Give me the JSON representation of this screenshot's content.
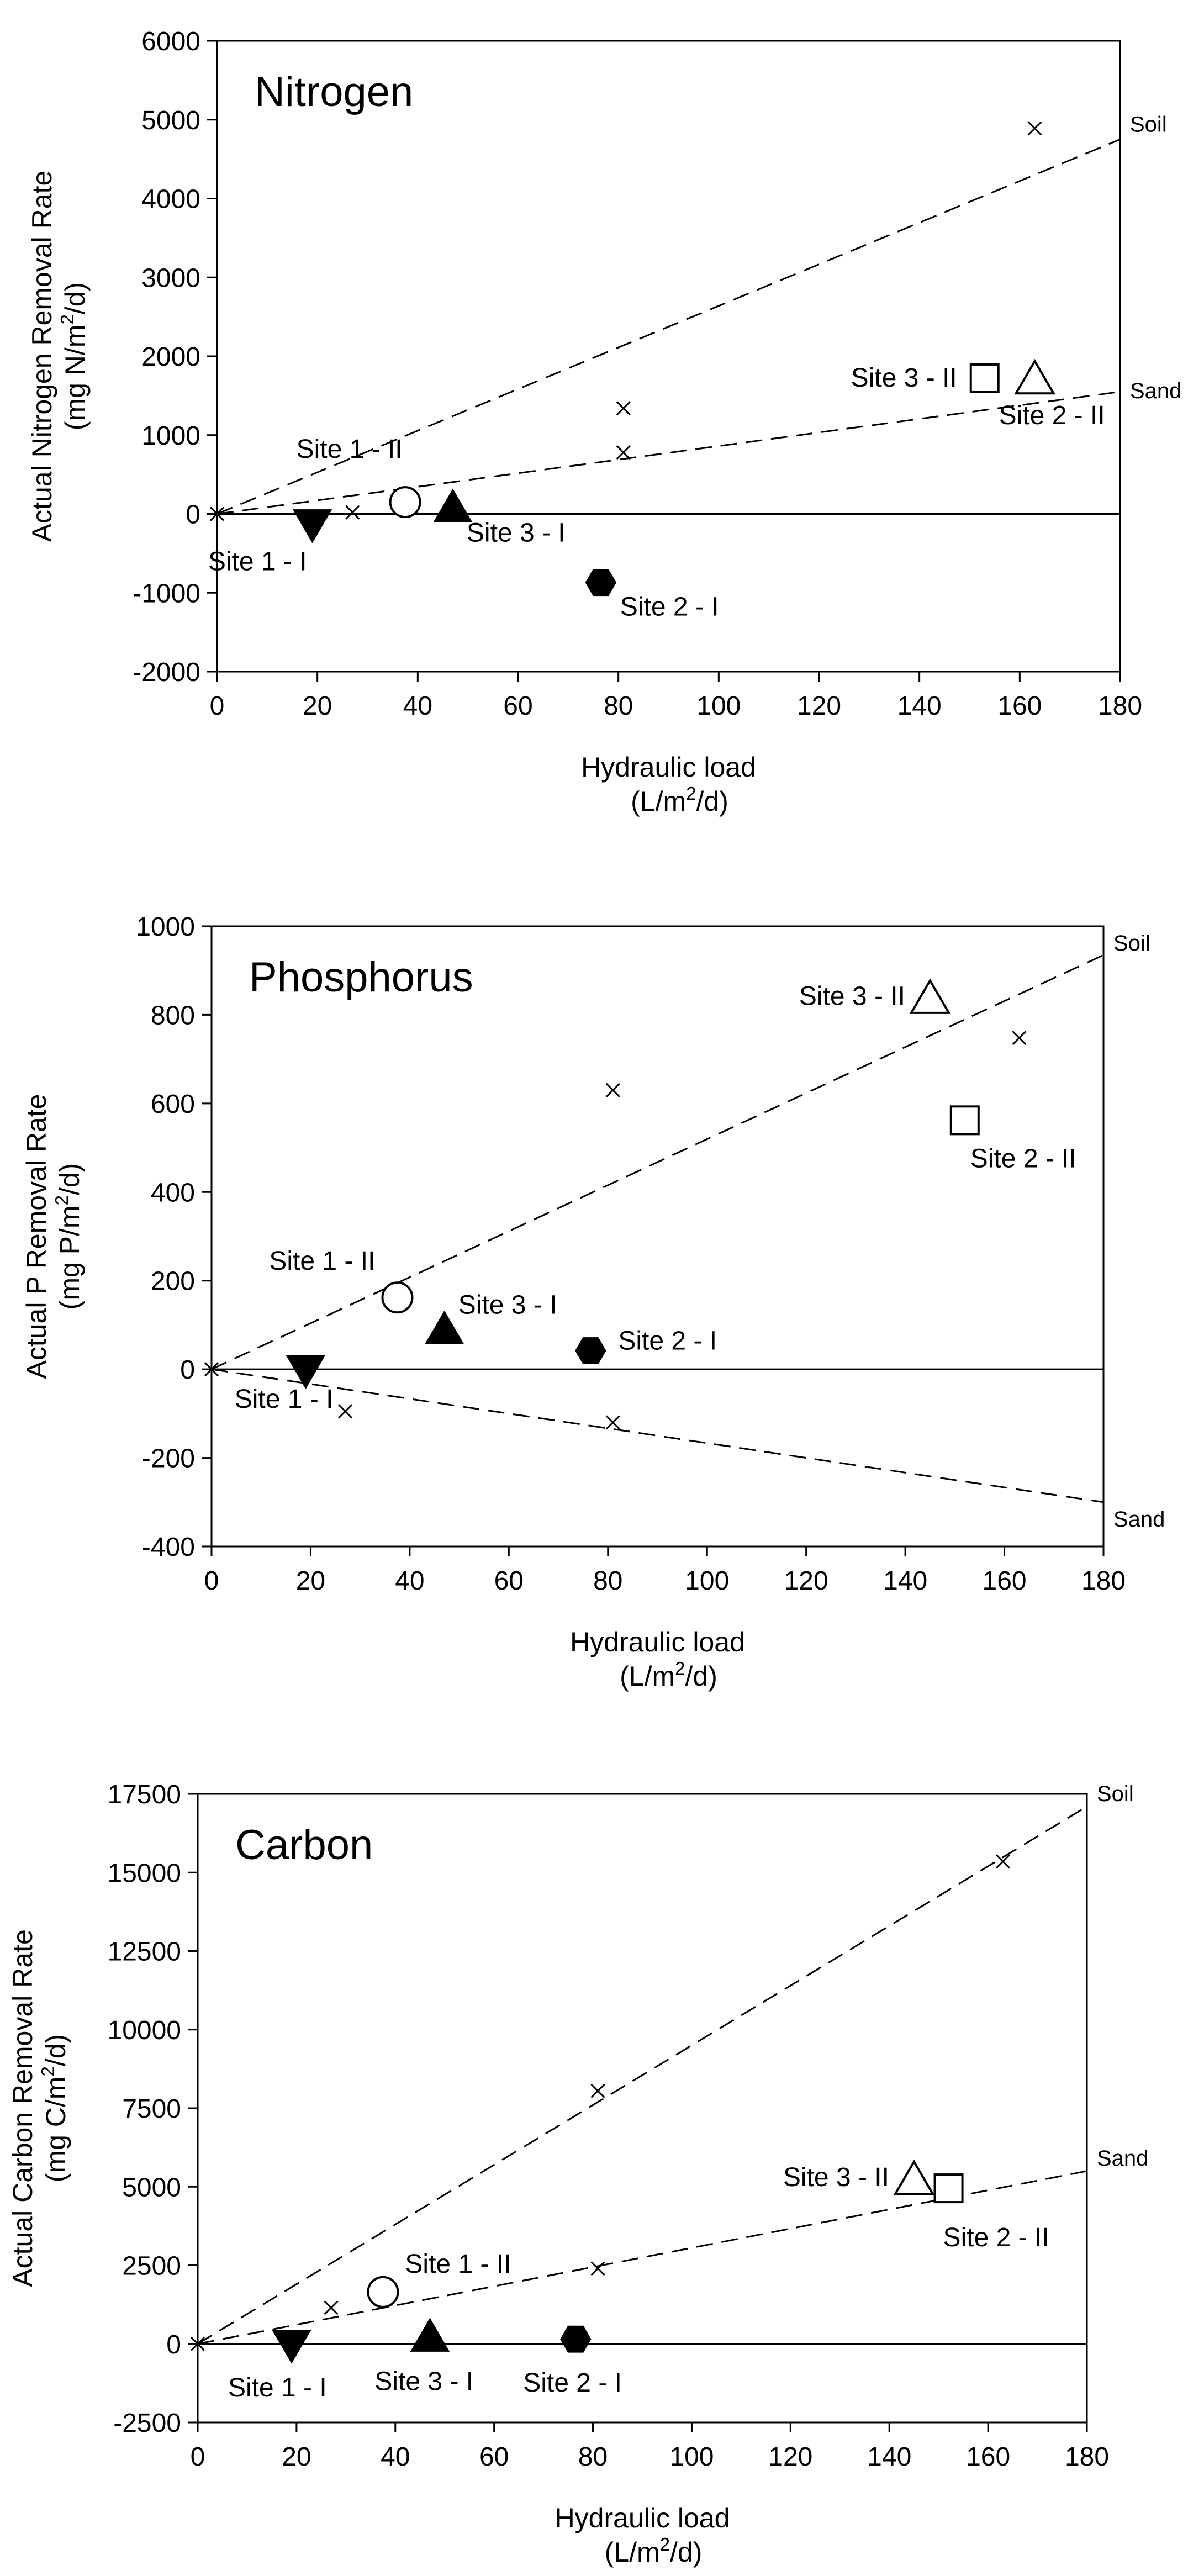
{
  "figure": {
    "hydraulic_label": "Hydraulic load",
    "unit_label": "(L/m²/d)",
    "panels": [
      "Nitrogen",
      "Phosphorus",
      "Carbon"
    ]
  },
  "chart_data": [
    {
      "type": "scatter",
      "title": "Nitrogen",
      "xlabel": "Hydraulic load",
      "xlabel_unit": "(L/m²/d)",
      "ylabel": "Actual Nitrogen Removal Rate",
      "ylabel_unit": "(mg N/m²/d)",
      "xlim": [
        0,
        180
      ],
      "ylim": [
        -2000,
        6000
      ],
      "xticks": [
        "0",
        "20",
        "40",
        "60",
        "80",
        "100",
        "120",
        "140",
        "160",
        "180"
      ],
      "yticks": [
        "-2000",
        "-1000",
        "0",
        "1000",
        "2000",
        "3000",
        "4000",
        "5000",
        "6000"
      ],
      "lines": [
        {
          "name": "Soil",
          "x": [
            0,
            180
          ],
          "y": [
            0,
            4750
          ]
        },
        {
          "name": "Sand",
          "x": [
            0,
            180
          ],
          "y": [
            0,
            1550
          ]
        }
      ],
      "x_points": [
        {
          "x": 0,
          "y": 0
        },
        {
          "x": 27,
          "y": 20
        },
        {
          "x": 37.5,
          "y": 190
        },
        {
          "x": 81,
          "y": 1340
        },
        {
          "x": 81,
          "y": 780
        },
        {
          "x": 163,
          "y": 4890
        }
      ],
      "sites": [
        {
          "label": "Site 1 - I",
          "marker": "down-triangle",
          "x": 19,
          "y": -120
        },
        {
          "label": "Site 1 - II",
          "marker": "circle",
          "x": 37.5,
          "y": 150
        },
        {
          "label": "Site 3 - I",
          "marker": "triangle",
          "x": 47,
          "y": 70
        },
        {
          "label": "Site 2 - I",
          "marker": "hexagon",
          "x": 76.5,
          "y": -870
        },
        {
          "label": "Site 3 - II",
          "marker": "square",
          "x": 153,
          "y": 1720
        },
        {
          "label": "Site 2 - II",
          "marker": "open-triangle",
          "x": 163,
          "y": 1700
        }
      ]
    },
    {
      "type": "scatter",
      "title": "Phosphorus",
      "xlabel": "Hydraulic load",
      "xlabel_unit": "(L/m²/d)",
      "ylabel": "Actual P Removal Rate",
      "ylabel_unit": "(mg P/m²/d)",
      "xlim": [
        0,
        180
      ],
      "ylim": [
        -400,
        1000
      ],
      "xticks": [
        "0",
        "20",
        "40",
        "60",
        "80",
        "100",
        "120",
        "140",
        "160",
        "180"
      ],
      "yticks": [
        "-400",
        "-200",
        "0",
        "200",
        "400",
        "600",
        "800",
        "1000"
      ],
      "lines": [
        {
          "name": "Soil",
          "x": [
            0,
            180
          ],
          "y": [
            0,
            935
          ]
        },
        {
          "name": "Sand",
          "x": [
            0,
            180
          ],
          "y": [
            0,
            -300
          ]
        }
      ],
      "x_points": [
        {
          "x": 0,
          "y": 0
        },
        {
          "x": 27,
          "y": -95
        },
        {
          "x": 81,
          "y": -120
        },
        {
          "x": 81,
          "y": 630
        },
        {
          "x": 163,
          "y": 748
        }
      ],
      "sites": [
        {
          "label": "Site 1 - I",
          "marker": "down-triangle",
          "x": 19,
          "y": 0
        },
        {
          "label": "Site 1 - II",
          "marker": "circle",
          "x": 37.5,
          "y": 162
        },
        {
          "label": "Site 3 - I",
          "marker": "triangle",
          "x": 47,
          "y": 88
        },
        {
          "label": "Site 2 - I",
          "marker": "hexagon",
          "x": 76.5,
          "y": 42
        },
        {
          "label": "Site 3 - II",
          "marker": "open-triangle",
          "x": 145,
          "y": 835
        },
        {
          "label": "Site 2 - II",
          "marker": "square",
          "x": 152,
          "y": 562
        }
      ]
    },
    {
      "type": "scatter",
      "title": "Carbon",
      "xlabel": "Hydraulic load",
      "xlabel_unit": "(L/m²/d)",
      "ylabel": "Actual Carbon Removal Rate",
      "ylabel_unit": "(mg C/m²/d)",
      "xlim": [
        0,
        180
      ],
      "ylim": [
        -2500,
        17500
      ],
      "xticks": [
        "0",
        "20",
        "40",
        "60",
        "80",
        "100",
        "120",
        "140",
        "160",
        "180"
      ],
      "yticks": [
        "-2500",
        "0",
        "2500",
        "5000",
        "7500",
        "10000",
        "12500",
        "15000",
        "17500"
      ],
      "lines": [
        {
          "name": "Soil",
          "x": [
            0,
            180
          ],
          "y": [
            0,
            17100
          ]
        },
        {
          "name": "Sand",
          "x": [
            0,
            180
          ],
          "y": [
            0,
            5500
          ]
        }
      ],
      "x_points": [
        {
          "x": 0,
          "y": 0
        },
        {
          "x": 27,
          "y": 1150
        },
        {
          "x": 81,
          "y": 2400
        },
        {
          "x": 81,
          "y": 8050
        },
        {
          "x": 163,
          "y": 15350
        }
      ],
      "sites": [
        {
          "label": "Site 1 - I",
          "marker": "down-triangle",
          "x": 19,
          "y": 0
        },
        {
          "label": "Site 1 - II",
          "marker": "circle",
          "x": 37.5,
          "y": 1650
        },
        {
          "label": "Site 3 - I",
          "marker": "triangle",
          "x": 47,
          "y": 200
        },
        {
          "label": "Site 2 - I",
          "marker": "hexagon",
          "x": 76.5,
          "y": 150
        },
        {
          "label": "Site 3 - II",
          "marker": "open-triangle",
          "x": 145,
          "y": 5200
        },
        {
          "label": "Site 2 - II",
          "marker": "square",
          "x": 152,
          "y": 4950
        }
      ]
    }
  ]
}
